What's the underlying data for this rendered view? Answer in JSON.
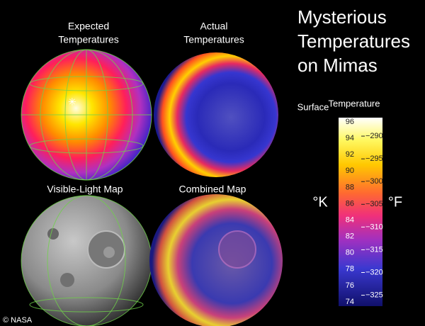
{
  "title": [
    "Mysterious",
    "Temperatures",
    "on Mimas"
  ],
  "panels": [
    {
      "label": [
        "Expected",
        "Temperatures"
      ]
    },
    {
      "label": [
        "Actual",
        "Temperatures"
      ]
    },
    {
      "label": [
        "Visible-Light Map"
      ]
    },
    {
      "label": [
        "Combined Map"
      ]
    }
  ],
  "colorbar": {
    "title": [
      "Surface",
      "Temperature"
    ],
    "left_unit": "°K",
    "right_unit": "°F",
    "kelvin_ticks": [
      74,
      76,
      78,
      80,
      82,
      84,
      86,
      88,
      90,
      92,
      94,
      96
    ],
    "fahrenheit_ticks": [
      {
        "value": -290,
        "label": "−290"
      },
      {
        "value": -295,
        "label": "−295"
      },
      {
        "value": -300,
        "label": "−300"
      },
      {
        "value": -305,
        "label": "−305"
      },
      {
        "value": -310,
        "label": "−310"
      },
      {
        "value": -315,
        "label": "−315"
      },
      {
        "value": -320,
        "label": "−320"
      },
      {
        "value": -325,
        "label": "−325"
      }
    ]
  },
  "credit": "© NASA"
}
